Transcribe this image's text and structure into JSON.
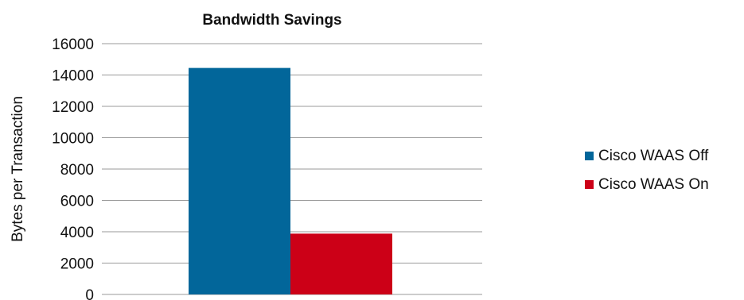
{
  "chart_data": {
    "type": "bar",
    "title": "Bandwidth Savings",
    "xlabel": "",
    "ylabel": "Bytes per Transaction",
    "ylim": [
      0,
      16000
    ],
    "yticks": [
      0,
      2000,
      4000,
      6000,
      8000,
      10000,
      12000,
      14000,
      16000
    ],
    "grid": true,
    "legend_position": "right",
    "categories": [
      ""
    ],
    "series": [
      {
        "name": "Cisco WAAS Off",
        "values": [
          14450
        ],
        "color": "#02669a"
      },
      {
        "name": "Cisco WAAS On",
        "values": [
          3880
        ],
        "color": "#cc0017"
      }
    ]
  }
}
